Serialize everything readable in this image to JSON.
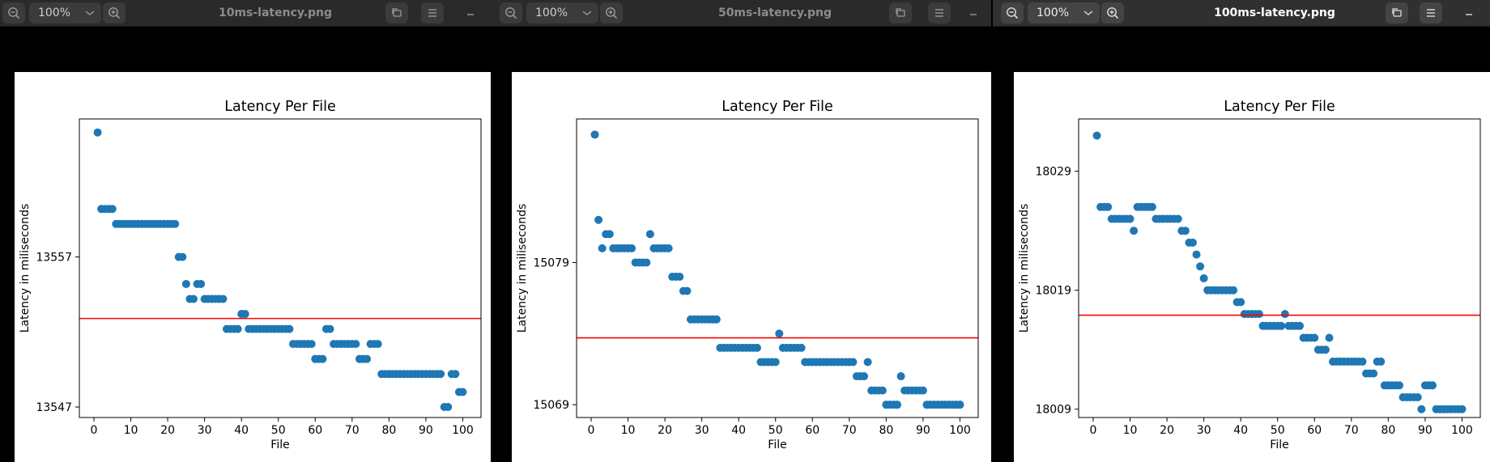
{
  "windows": [
    {
      "id": "win-10ms",
      "title": "10ms-latency.png",
      "zoom": "100%",
      "active": false,
      "chart_data": {
        "type": "scatter",
        "title": "Latency Per File",
        "xlabel": "File",
        "ylabel": "Latency in miliseconds",
        "xlim": [
          -3.95,
          104.95
        ],
        "ylim": [
          13546.3,
          13566.2
        ],
        "xticks": [
          0,
          10,
          20,
          30,
          40,
          50,
          60,
          70,
          80,
          90,
          100
        ],
        "yticks": [
          13547,
          13557
        ],
        "hline": 13552.9,
        "hline_color": "#ff0000",
        "marker_color": "#1f77b4",
        "x": [
          1,
          2,
          3,
          4,
          5,
          6,
          7,
          8,
          9,
          10,
          11,
          12,
          13,
          14,
          15,
          16,
          17,
          18,
          19,
          20,
          21,
          22,
          23,
          24,
          25,
          26,
          27,
          28,
          29,
          30,
          31,
          32,
          33,
          34,
          35,
          36,
          37,
          38,
          39,
          40,
          41,
          42,
          43,
          44,
          45,
          46,
          47,
          48,
          49,
          50,
          51,
          52,
          53,
          54,
          55,
          56,
          57,
          58,
          59,
          60,
          61,
          62,
          63,
          64,
          65,
          66,
          67,
          68,
          69,
          70,
          71,
          72,
          73,
          74,
          75,
          76,
          77,
          78,
          79,
          80,
          81,
          82,
          83,
          84,
          85,
          86,
          87,
          88,
          89,
          90,
          91,
          92,
          93,
          94,
          95,
          96,
          97,
          98,
          99,
          100
        ],
        "y": [
          13565.3,
          13560.2,
          13560.2,
          13560.2,
          13560.2,
          13559.2,
          13559.2,
          13559.2,
          13559.2,
          13559.2,
          13559.2,
          13559.2,
          13559.2,
          13559.2,
          13559.2,
          13559.2,
          13559.2,
          13559.2,
          13559.2,
          13559.2,
          13559.2,
          13559.2,
          13557.0,
          13557.0,
          13555.2,
          13554.2,
          13554.2,
          13555.2,
          13555.2,
          13554.2,
          13554.2,
          13554.2,
          13554.2,
          13554.2,
          13554.2,
          13552.2,
          13552.2,
          13552.2,
          13552.2,
          13553.2,
          13553.2,
          13552.2,
          13552.2,
          13552.2,
          13552.2,
          13552.2,
          13552.2,
          13552.2,
          13552.2,
          13552.2,
          13552.2,
          13552.2,
          13552.2,
          13551.2,
          13551.2,
          13551.2,
          13551.2,
          13551.2,
          13551.2,
          13550.2,
          13550.2,
          13550.2,
          13552.2,
          13552.2,
          13551.2,
          13551.2,
          13551.2,
          13551.2,
          13551.2,
          13551.2,
          13551.2,
          13550.2,
          13550.2,
          13550.2,
          13551.2,
          13551.2,
          13551.2,
          13549.2,
          13549.2,
          13549.2,
          13549.2,
          13549.2,
          13549.2,
          13549.2,
          13549.2,
          13549.2,
          13549.2,
          13549.2,
          13549.2,
          13549.2,
          13549.2,
          13549.2,
          13549.2,
          13549.2,
          13547.0,
          13547.0,
          13549.2,
          13549.2,
          13548.0,
          13548.0
        ]
      }
    },
    {
      "id": "win-50ms",
      "title": "50ms-latency.png",
      "zoom": "100%",
      "active": false,
      "chart_data": {
        "type": "scatter",
        "title": "Latency Per File",
        "xlabel": "File",
        "ylabel": "Latency in miliseconds",
        "xlim": [
          -3.95,
          104.95
        ],
        "ylim": [
          15068.1,
          15089.1
        ],
        "xticks": [
          0,
          10,
          20,
          30,
          40,
          50,
          60,
          70,
          80,
          90,
          100
        ],
        "yticks": [
          15069,
          15079
        ],
        "hline": 15073.7,
        "hline_color": "#ff0000",
        "marker_color": "#1f77b4",
        "x": [
          1,
          2,
          3,
          4,
          5,
          6,
          7,
          8,
          9,
          10,
          11,
          12,
          13,
          14,
          15,
          16,
          17,
          18,
          19,
          20,
          21,
          22,
          23,
          24,
          25,
          26,
          27,
          28,
          29,
          30,
          31,
          32,
          33,
          34,
          35,
          36,
          37,
          38,
          39,
          40,
          41,
          42,
          43,
          44,
          45,
          46,
          47,
          48,
          49,
          50,
          51,
          52,
          53,
          54,
          55,
          56,
          57,
          58,
          59,
          60,
          61,
          62,
          63,
          64,
          65,
          66,
          67,
          68,
          69,
          70,
          71,
          72,
          73,
          74,
          75,
          76,
          77,
          78,
          79,
          80,
          81,
          82,
          83,
          84,
          85,
          86,
          87,
          88,
          89,
          90,
          91,
          92,
          93,
          94,
          95,
          96,
          97,
          98,
          99,
          100
        ],
        "y": [
          15088.0,
          15082.0,
          15080.0,
          15081.0,
          15081.0,
          15080.0,
          15080.0,
          15080.0,
          15080.0,
          15080.0,
          15080.0,
          15079.0,
          15079.0,
          15079.0,
          15079.0,
          15081.0,
          15080.0,
          15080.0,
          15080.0,
          15080.0,
          15080.0,
          15078.0,
          15078.0,
          15078.0,
          15077.0,
          15077.0,
          15075.0,
          15075.0,
          15075.0,
          15075.0,
          15075.0,
          15075.0,
          15075.0,
          15075.0,
          15073.0,
          15073.0,
          15073.0,
          15073.0,
          15073.0,
          15073.0,
          15073.0,
          15073.0,
          15073.0,
          15073.0,
          15073.0,
          15072.0,
          15072.0,
          15072.0,
          15072.0,
          15072.0,
          15074.0,
          15073.0,
          15073.0,
          15073.0,
          15073.0,
          15073.0,
          15073.0,
          15072.0,
          15072.0,
          15072.0,
          15072.0,
          15072.0,
          15072.0,
          15072.0,
          15072.0,
          15072.0,
          15072.0,
          15072.0,
          15072.0,
          15072.0,
          15072.0,
          15071.0,
          15071.0,
          15071.0,
          15072.0,
          15070.0,
          15070.0,
          15070.0,
          15070.0,
          15069.0,
          15069.0,
          15069.0,
          15069.0,
          15071.0,
          15070.0,
          15070.0,
          15070.0,
          15070.0,
          15070.0,
          15070.0,
          15069.0,
          15069.0,
          15069.0,
          15069.0,
          15069.0,
          15069.0,
          15069.0,
          15069.0,
          15069.0,
          15069.0
        ]
      }
    },
    {
      "id": "win-100ms",
      "title": "100ms-latency.png",
      "zoom": "100%",
      "active": true,
      "chart_data": {
        "type": "scatter",
        "title": "Latency Per File",
        "xlabel": "File",
        "ylabel": "Latency in miliseconds",
        "xlim": [
          -3.95,
          104.95
        ],
        "ylim": [
          18008.3,
          18033.4
        ],
        "xticks": [
          0,
          10,
          20,
          30,
          40,
          50,
          60,
          70,
          80,
          90,
          100
        ],
        "yticks": [
          18009,
          18019,
          18029
        ],
        "hline": 18016.9,
        "hline_color": "#ff0000",
        "marker_color": "#1f77b4",
        "x": [
          1,
          2,
          3,
          4,
          5,
          6,
          7,
          8,
          9,
          10,
          11,
          12,
          13,
          14,
          15,
          16,
          17,
          18,
          19,
          20,
          21,
          22,
          23,
          24,
          25,
          26,
          27,
          28,
          29,
          30,
          31,
          32,
          33,
          34,
          35,
          36,
          37,
          38,
          39,
          40,
          41,
          42,
          43,
          44,
          45,
          46,
          47,
          48,
          49,
          50,
          51,
          52,
          53,
          54,
          55,
          56,
          57,
          58,
          59,
          60,
          61,
          62,
          63,
          64,
          65,
          66,
          67,
          68,
          69,
          70,
          71,
          72,
          73,
          74,
          75,
          76,
          77,
          78,
          79,
          80,
          81,
          82,
          83,
          84,
          85,
          86,
          87,
          88,
          89,
          90,
          91,
          92,
          93,
          94,
          95,
          96,
          97,
          98,
          99,
          100
        ],
        "y": [
          18032.0,
          18026.0,
          18026.0,
          18026.0,
          18025.0,
          18025.0,
          18025.0,
          18025.0,
          18025.0,
          18025.0,
          18024.0,
          18026.0,
          18026.0,
          18026.0,
          18026.0,
          18026.0,
          18025.0,
          18025.0,
          18025.0,
          18025.0,
          18025.0,
          18025.0,
          18025.0,
          18024.0,
          18024.0,
          18023.0,
          18023.0,
          18022.0,
          18021.0,
          18020.0,
          18019.0,
          18019.0,
          18019.0,
          18019.0,
          18019.0,
          18019.0,
          18019.0,
          18019.0,
          18018.0,
          18018.0,
          18017.0,
          18017.0,
          18017.0,
          18017.0,
          18017.0,
          18016.0,
          18016.0,
          18016.0,
          18016.0,
          18016.0,
          18016.0,
          18017.0,
          18016.0,
          18016.0,
          18016.0,
          18016.0,
          18015.0,
          18015.0,
          18015.0,
          18015.0,
          18014.0,
          18014.0,
          18014.0,
          18015.0,
          18013.0,
          18013.0,
          18013.0,
          18013.0,
          18013.0,
          18013.0,
          18013.0,
          18013.0,
          18013.0,
          18012.0,
          18012.0,
          18012.0,
          18013.0,
          18013.0,
          18011.0,
          18011.0,
          18011.0,
          18011.0,
          18011.0,
          18010.0,
          18010.0,
          18010.0,
          18010.0,
          18010.0,
          18009.0,
          18011.0,
          18011.0,
          18011.0,
          18009.0,
          18009.0,
          18009.0,
          18009.0,
          18009.0,
          18009.0,
          18009.0,
          18009.0
        ]
      }
    }
  ]
}
